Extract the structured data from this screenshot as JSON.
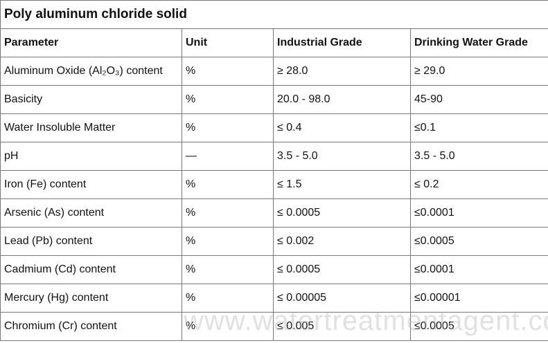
{
  "table": {
    "title": "Poly aluminum chloride solid",
    "header": [
      "Parameter",
      "Unit",
      "Industrial Grade",
      "Drinking Water Grade"
    ],
    "rows": [
      [
        "Aluminum Oxide (Al₂O₃) content",
        "%",
        "≥ 28.0",
        "≥ 29.0"
      ],
      [
        "Basicity",
        "%",
        "20.0 - 98.0",
        "45-90"
      ],
      [
        "Water Insoluble Matter",
        "%",
        "≤ 0.4",
        "≤0.1"
      ],
      [
        "pH",
        "—",
        "3.5 - 5.0",
        "3.5 - 5.0"
      ],
      [
        "Iron (Fe) content",
        "%",
        "≤ 1.5",
        "≤ 0.2"
      ],
      [
        "Arsenic (As) content",
        "%",
        "≤ 0.0005",
        "≤0.0001"
      ],
      [
        "Lead (Pb) content",
        "%",
        "≤ 0.002",
        "≤0.0005"
      ],
      [
        "Cadmium (Cd) content",
        "%",
        "≤ 0.0005",
        "≤0.0001"
      ],
      [
        "Mercury (Hg) content",
        "%",
        "≤ 0.00005",
        "≤0.00001"
      ],
      [
        "Chromium (Cr) content",
        "%",
        "≤ 0.005",
        "≤0.0005"
      ]
    ]
  },
  "watermark": "www.watertreatmentagent.com"
}
